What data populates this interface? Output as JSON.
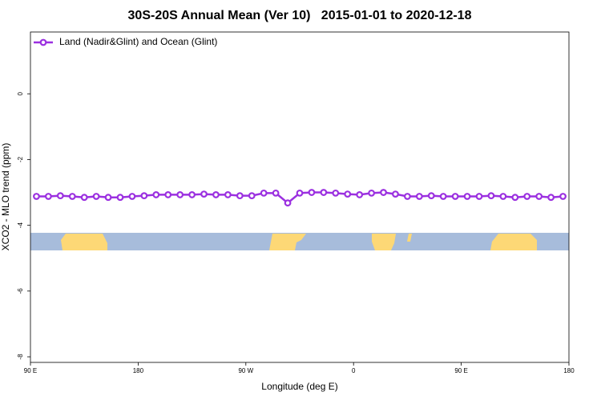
{
  "chart_data": {
    "type": "line",
    "title": "30S-20S Annual Mean (Ver 10)   2015-01-01 to 2020-12-18",
    "x_label": "Longitude (deg E)",
    "y_label": "XCO2 - MLO trend (ppm)",
    "x": [
      95,
      105,
      115,
      125,
      135,
      145,
      155,
      165,
      175,
      185,
      195,
      205,
      215,
      225,
      235,
      245,
      255,
      265,
      275,
      285,
      295,
      305,
      315,
      325,
      335,
      345,
      355,
      365,
      375,
      385,
      395,
      405,
      415,
      425,
      435,
      445,
      455,
      465,
      475,
      485,
      495,
      505,
      515,
      525,
      535
    ],
    "series": [
      {
        "name": "Land (Nadir&Glint) and Ocean (Glint)",
        "color": "#9b30e0",
        "values": [
          -3.12,
          -3.12,
          -3.1,
          -3.12,
          -3.15,
          -3.12,
          -3.15,
          -3.15,
          -3.12,
          -3.1,
          -3.07,
          -3.07,
          -3.07,
          -3.07,
          -3.05,
          -3.07,
          -3.07,
          -3.1,
          -3.1,
          -3.02,
          -3.02,
          -3.32,
          -3.02,
          -3.0,
          -3.0,
          -3.02,
          -3.05,
          -3.07,
          -3.02,
          -3.0,
          -3.05,
          -3.12,
          -3.12,
          -3.1,
          -3.12,
          -3.12,
          -3.12,
          -3.12,
          -3.1,
          -3.12,
          -3.15,
          -3.12,
          -3.12,
          -3.15,
          -3.12
        ]
      }
    ],
    "xlim": [
      90,
      540
    ],
    "xticks": [
      {
        "value": 90,
        "label": "90 E"
      },
      180,
      {
        "value": 270,
        "label": "90 W"
      },
      {
        "value": 360,
        "label": "0"
      },
      {
        "value": 450,
        "label": "90 E"
      },
      {
        "value": 540,
        "label": "180"
      }
    ],
    "ylim": [
      -8.17,
      1.88
    ],
    "yticks": [
      0,
      -2,
      -4,
      -6,
      -8
    ],
    "legend": "top-left"
  }
}
